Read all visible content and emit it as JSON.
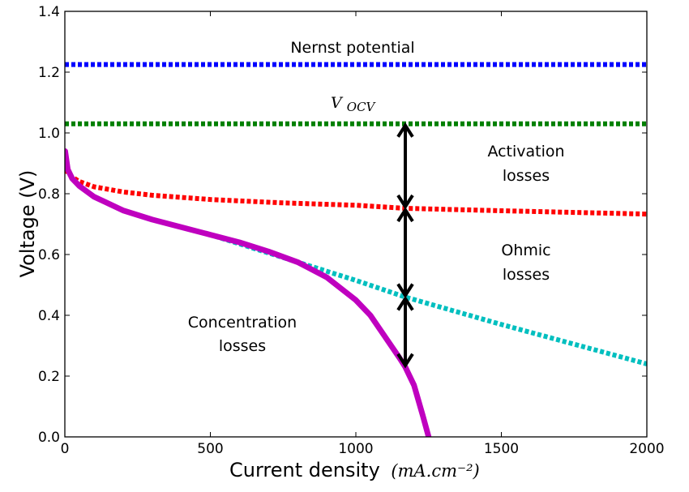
{
  "chart_data": {
    "type": "line",
    "xlabel": "Current density",
    "xlabel_unit": "(mA.cm⁻²)",
    "ylabel": "Voltage (V)",
    "xlim": [
      0,
      2000
    ],
    "ylim": [
      0.0,
      1.4
    ],
    "xticks": [
      "0",
      "500",
      "1000",
      "1500",
      "2000"
    ],
    "yticks": [
      "0.0",
      "0.2",
      "0.4",
      "0.6",
      "0.8",
      "1.0",
      "1.2",
      "1.4"
    ],
    "grid": false,
    "series": [
      {
        "name": "Nernst potential",
        "style": "dotted",
        "color": "#0000ff",
        "x": [
          0,
          2000
        ],
        "y": [
          1.225,
          1.225
        ]
      },
      {
        "name": "V_OCV",
        "style": "dotted",
        "color": "#008000",
        "x": [
          0,
          2000
        ],
        "y": [
          1.03,
          1.03
        ]
      },
      {
        "name": "Activation",
        "style": "dotted",
        "color": "#ff0000",
        "x": [
          1,
          10,
          25,
          50,
          100,
          200,
          300,
          500,
          750,
          1000,
          1170,
          1500,
          2000
        ],
        "y": [
          0.88,
          0.87,
          0.855,
          0.84,
          0.823,
          0.806,
          0.795,
          0.781,
          0.77,
          0.762,
          0.752,
          0.744,
          0.733
        ]
      },
      {
        "name": "Ohmic",
        "style": "dotted",
        "color": "#00bfbf",
        "x": [
          1,
          10,
          25,
          50,
          100,
          200,
          300,
          500,
          750,
          1000,
          1170,
          1500,
          2000
        ],
        "y": [
          0.93,
          0.88,
          0.85,
          0.825,
          0.79,
          0.745,
          0.715,
          0.665,
          0.59,
          0.515,
          0.46,
          0.37,
          0.24
        ]
      },
      {
        "name": "Concentration",
        "style": "solid",
        "color": "#bf00bf",
        "x": [
          1,
          10,
          25,
          50,
          100,
          200,
          300,
          400,
          500,
          600,
          700,
          800,
          900,
          1000,
          1050,
          1100,
          1150,
          1170,
          1200,
          1230,
          1250
        ],
        "y": [
          0.94,
          0.88,
          0.85,
          0.825,
          0.79,
          0.745,
          0.715,
          0.69,
          0.665,
          0.64,
          0.61,
          0.575,
          0.525,
          0.45,
          0.4,
          0.33,
          0.26,
          0.23,
          0.17,
          0.07,
          0.0
        ]
      }
    ],
    "arrows": [
      {
        "x": 1170,
        "y_from": 1.03,
        "y_to": 0.752
      },
      {
        "x": 1170,
        "y_from": 0.752,
        "y_to": 0.46
      },
      {
        "x": 1170,
        "y_from": 0.46,
        "y_to": 0.23
      }
    ]
  },
  "annotations": {
    "nernst": "Nernst potential",
    "vocv_main": "V",
    "vocv_sub": "OCV",
    "activation_1": "Activation",
    "activation_2": "losses",
    "ohmic_1": "Ohmic",
    "ohmic_2": "losses",
    "concentration_1": "Concentration",
    "concentration_2": "losses"
  }
}
